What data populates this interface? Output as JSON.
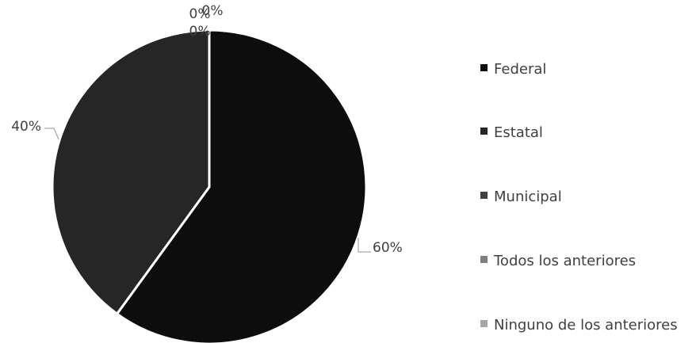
{
  "chart_data": {
    "type": "pie",
    "categories": [
      "Federal",
      "Estatal",
      "Municipal",
      "Todos los anteriores",
      "Ninguno de los anteriores"
    ],
    "values": [
      60,
      40,
      0,
      0,
      0
    ],
    "data_labels": [
      "60%",
      "40%",
      "0%",
      "0%",
      "0%"
    ],
    "colors": [
      "#0d0d0d",
      "#262626",
      "#404040",
      "#7f7f7f",
      "#a6a6a6"
    ],
    "legend_position": "right"
  }
}
